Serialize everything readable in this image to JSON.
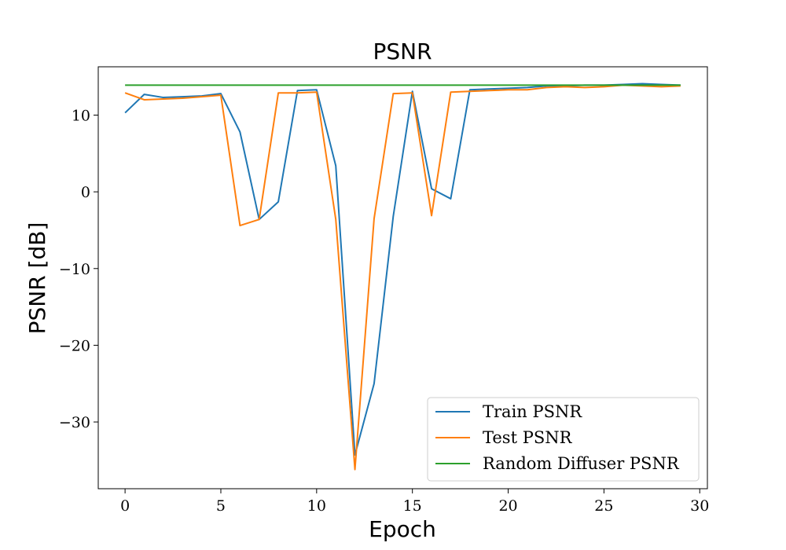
{
  "chart_data": {
    "type": "line",
    "title": "PSNR",
    "xlabel": "Epoch",
    "ylabel": "PSNR [dB]",
    "xlim": [
      -1.4,
      30.4
    ],
    "ylim": [
      -38.7,
      16.3
    ],
    "xticks": [
      0,
      5,
      10,
      15,
      20,
      25,
      30
    ],
    "yticks": [
      -30,
      -20,
      -10,
      0,
      10
    ],
    "ytick_labels": [
      "−30",
      "−20",
      "−10",
      "0",
      "10"
    ],
    "x": [
      0,
      1,
      2,
      3,
      4,
      5,
      6,
      7,
      8,
      9,
      10,
      11,
      12,
      13,
      14,
      15,
      16,
      17,
      18,
      19,
      20,
      21,
      22,
      23,
      24,
      25,
      26,
      27,
      28,
      29
    ],
    "series": [
      {
        "name": "Train PSNR",
        "color": "#1f77b4",
        "values": [
          10.3,
          12.7,
          12.3,
          12.4,
          12.5,
          12.8,
          7.8,
          -3.6,
          -1.3,
          13.2,
          13.3,
          3.4,
          -34.3,
          -25.0,
          -3.2,
          13.1,
          0.4,
          -0.9,
          13.3,
          13.4,
          13.5,
          13.6,
          13.8,
          13.8,
          13.9,
          13.9,
          14.0,
          14.1,
          14.0,
          13.9
        ]
      },
      {
        "name": "Test PSNR",
        "color": "#ff7f0e",
        "values": [
          12.9,
          12.0,
          12.1,
          12.2,
          12.4,
          12.6,
          -4.4,
          -3.6,
          12.9,
          12.9,
          13.0,
          -3.6,
          -36.2,
          -3.5,
          12.8,
          12.9,
          -3.1,
          13.0,
          13.1,
          13.2,
          13.3,
          13.3,
          13.6,
          13.7,
          13.6,
          13.7,
          13.9,
          13.8,
          13.7,
          13.8
        ]
      },
      {
        "name": "Random Diffuser PSNR",
        "color": "#2ca02c",
        "values": [
          13.9,
          13.9,
          13.9,
          13.9,
          13.9,
          13.9,
          13.9,
          13.9,
          13.9,
          13.9,
          13.9,
          13.9,
          13.9,
          13.9,
          13.9,
          13.9,
          13.9,
          13.9,
          13.9,
          13.9,
          13.9,
          13.9,
          13.9,
          13.9,
          13.9,
          13.9,
          13.9,
          13.9,
          13.9,
          13.9
        ]
      }
    ],
    "grid": false,
    "legend_position": "lower-right"
  }
}
